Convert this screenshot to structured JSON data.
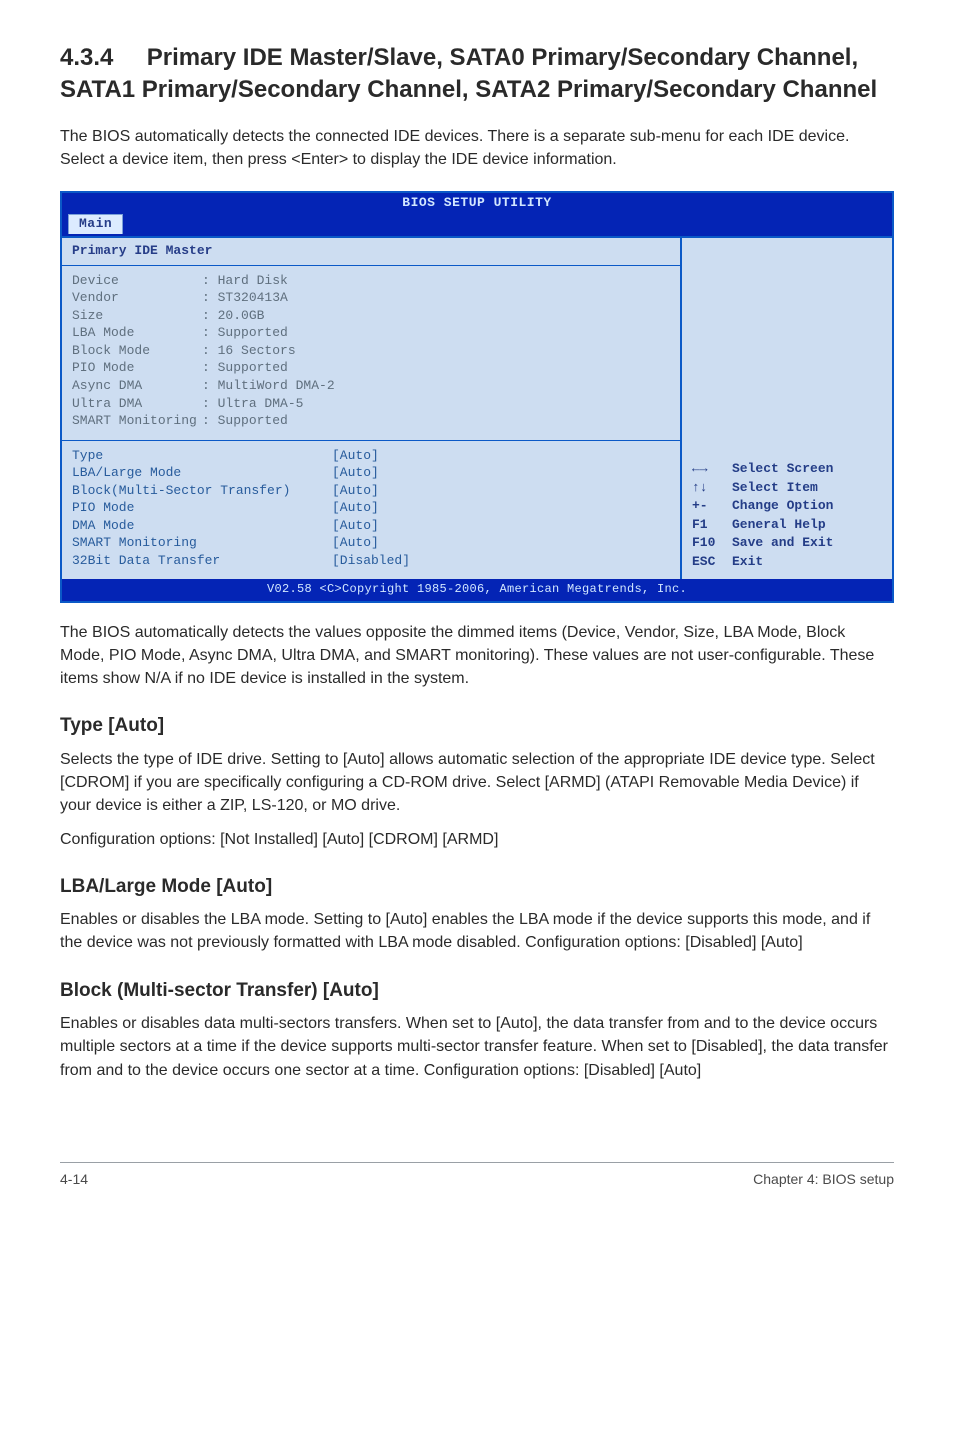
{
  "section": {
    "number": "4.3.4",
    "title": "Primary IDE Master/Slave, SATA0 Primary/Secondary Channel, SATA1 Primary/Secondary Channel, SATA2 Primary/Secondary Channel",
    "intro": "The BIOS automatically detects the connected IDE devices. There is a separate sub-menu for each IDE device. Select a device item, then press <Enter> to display the IDE device information."
  },
  "bios": {
    "utility_title": "BIOS SETUP UTILITY",
    "tab": "Main",
    "panel_title": "Primary IDE Master",
    "footer": "V02.58 <C>Copyright 1985-2006, American Megatrends, Inc.",
    "device_fields": [
      {
        "label": "Device",
        "value": "Hard Disk"
      },
      {
        "label": "Vendor",
        "value": "ST320413A"
      },
      {
        "label": "Size",
        "value": "20.0GB"
      },
      {
        "label": "LBA Mode",
        "value": "Supported"
      },
      {
        "label": "Block Mode",
        "value": "16 Sectors"
      },
      {
        "label": "PIO Mode",
        "value": "Supported"
      },
      {
        "label": "Async DMA",
        "value": "MultiWord DMA-2"
      },
      {
        "label": "Ultra DMA",
        "value": "Ultra DMA-5"
      },
      {
        "label": "SMART Monitoring",
        "value": "Supported"
      }
    ],
    "settings": [
      {
        "label": "Type",
        "value": "[Auto]"
      },
      {
        "label": "LBA/Large Mode",
        "value": "[Auto]"
      },
      {
        "label": "Block(Multi-Sector Transfer)",
        "value": "[Auto]"
      },
      {
        "label": "PIO Mode",
        "value": "[Auto]"
      },
      {
        "label": "DMA Mode",
        "value": "[Auto]"
      },
      {
        "label": "SMART Monitoring",
        "value": "[Auto]"
      },
      {
        "label": "32Bit Data Transfer",
        "value": "[Disabled]"
      }
    ],
    "help": [
      {
        "key": "←→",
        "label": "Select Screen"
      },
      {
        "key": "↑↓",
        "label": "Select Item"
      },
      {
        "key": "+-",
        "label": "Change Option"
      },
      {
        "key": "F1",
        "label": "General Help"
      },
      {
        "key": "F10",
        "label": "Save and Exit"
      },
      {
        "key": "ESC",
        "label": "Exit"
      }
    ]
  },
  "after_bios": "The BIOS automatically detects the values opposite the dimmed items (Device, Vendor, Size, LBA Mode, Block Mode, PIO Mode, Async DMA, Ultra DMA, and SMART monitoring). These values are not user-configurable. These items show N/A if no IDE device is installed in the system.",
  "fields": {
    "type": {
      "title": "Type [Auto]",
      "body1": "Selects the type of IDE drive. Setting to [Auto] allows automatic selection of the appropriate IDE device type. Select [CDROM] if you are specifically configuring a CD-ROM drive. Select [ARMD] (ATAPI Removable Media Device) if your device is either a ZIP, LS-120, or MO drive.",
      "body2": "Configuration options: [Not Installed] [Auto] [CDROM] [ARMD]"
    },
    "lba": {
      "title": "LBA/Large Mode [Auto]",
      "body": "Enables or disables the LBA mode. Setting to [Auto] enables the LBA mode if the device supports this mode, and if the device was not previously formatted with LBA mode disabled. Configuration options: [Disabled] [Auto]"
    },
    "block": {
      "title": "Block (Multi-sector Transfer) [Auto]",
      "body": "Enables or disables data multi-sectors transfers. When set to [Auto], the data transfer from and to the device occurs multiple sectors at a time if the device supports multi-sector transfer feature. When set to [Disabled], the data transfer from and to the device occurs one sector at a time. Configuration options: [Disabled] [Auto]"
    }
  },
  "footer": {
    "left": "4-14",
    "right": "Chapter 4: BIOS setup"
  }
}
